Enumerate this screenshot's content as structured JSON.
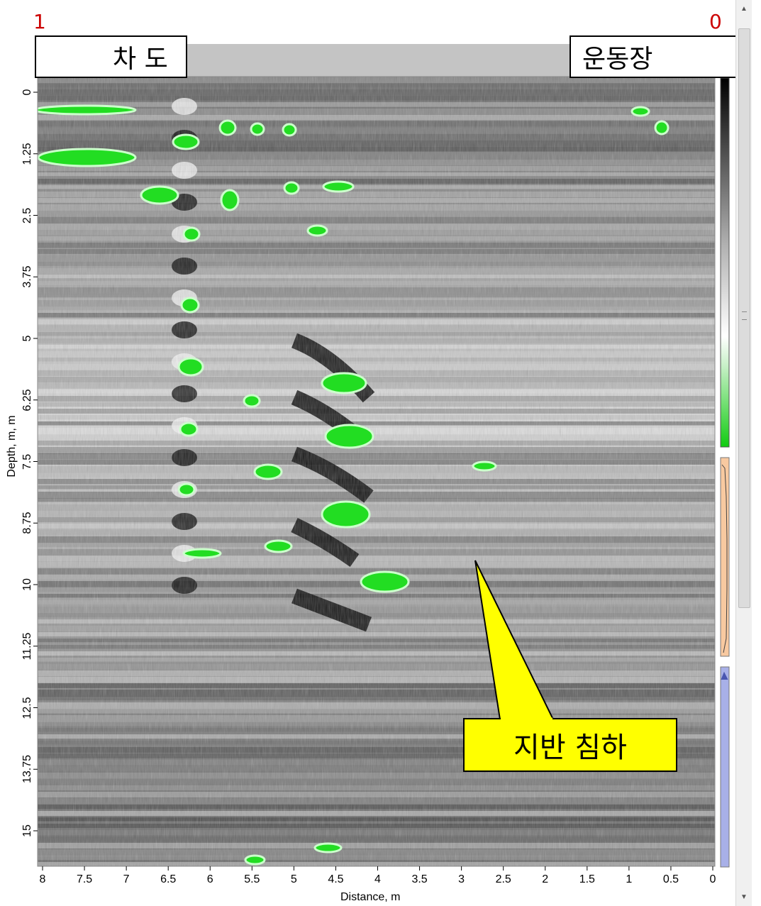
{
  "markers": {
    "left": "1",
    "right": "0"
  },
  "direction": {
    "left_label": "차 도",
    "right_label": "운동장"
  },
  "callout": {
    "label": "지반 침하"
  },
  "axes": {
    "x_title": "Distance, m",
    "y_title": "Depth, m, m",
    "x_ticks": [
      "8",
      "7.5",
      "7",
      "6.5",
      "6",
      "5.5",
      "5",
      "4.5",
      "4",
      "3.5",
      "3",
      "2.5",
      "2",
      "1.5",
      "1",
      "0.5",
      "0"
    ],
    "y_ticks": [
      "0",
      "1.25",
      "2.5",
      "3.75",
      "5",
      "6.25",
      "7.5",
      "8.75",
      "10",
      "11.25",
      "12.5",
      "13.75",
      "15"
    ]
  },
  "colors": {
    "marker": "#cc0000",
    "highlight": "#22dd22",
    "callout_fill": "#ffff00",
    "palette_orange": "#f8c9a0",
    "palette_blue": "#a8b0e8"
  },
  "chart_data": {
    "type": "heatmap",
    "title": "",
    "xlabel": "Distance, m",
    "ylabel": "Depth, m, m",
    "xlim": [
      8,
      0
    ],
    "ylim": [
      0,
      15
    ],
    "x_ticks": [
      8,
      7.5,
      7,
      6.5,
      6,
      5.5,
      5,
      4.5,
      4,
      3.5,
      3,
      2.5,
      2,
      1.5,
      1,
      0.5,
      0
    ],
    "y_ticks": [
      0,
      1.25,
      2.5,
      3.75,
      5,
      6.25,
      7.5,
      8.75,
      10,
      11.25,
      12.5,
      13.75,
      15
    ],
    "colormap": "grayscale with green highlight of strongest reflections",
    "annotation": "지반 침하"
  }
}
